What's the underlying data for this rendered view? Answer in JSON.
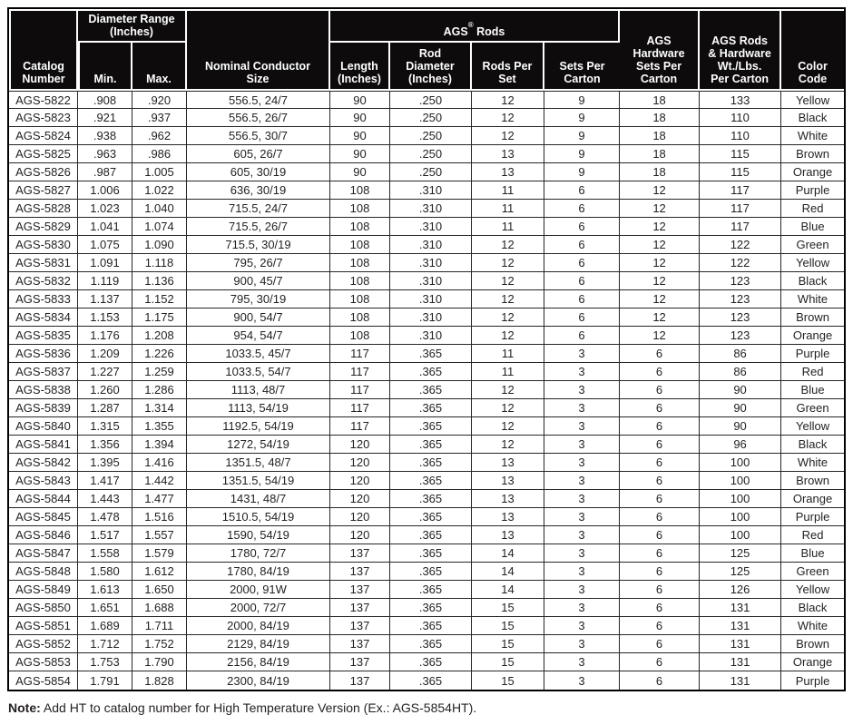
{
  "colors": {
    "header_bg": "#0d0b0c",
    "body_text": "#231f20",
    "grid_line": "#262626",
    "frame": "#000000"
  },
  "note": {
    "label": "Note:",
    "text": " Add HT to catalog number for High Temperature Version (Ex.: AGS-5854HT)."
  },
  "table": {
    "headers": {
      "catalog_number": "Catalog\nNumber",
      "diameter_range_group": "Diameter Range\n(Inches)",
      "min": "Min.",
      "max": "Max.",
      "nominal_conductor_size": "Nominal Conductor\nSize",
      "ags_rods_group": {
        "prefix": "AGS",
        "reg": "®",
        "suffix": " Rods"
      },
      "length": "Length\n(Inches)",
      "rod_diameter": "Rod\nDiameter\n(Inches)",
      "rods_per_set": "Rods Per\nSet",
      "sets_per_carton": "Sets Per\nCarton",
      "hardware_sets_per_carton": "AGS\nHardware\nSets Per\nCarton",
      "rods_hardware_wt_per_carton": "AGS Rods\n& Hardware\nWt./Lbs.\nPer Carton",
      "color_code": "Color\nCode"
    },
    "rows": [
      [
        "AGS-5822",
        ".908",
        ".920",
        "556.5, 24/7",
        "90",
        ".250",
        "12",
        "9",
        "18",
        "133",
        "Yellow"
      ],
      [
        "AGS-5823",
        ".921",
        ".937",
        "556.5, 26/7",
        "90",
        ".250",
        "12",
        "9",
        "18",
        "110",
        "Black"
      ],
      [
        "AGS-5824",
        ".938",
        ".962",
        "556.5, 30/7",
        "90",
        ".250",
        "12",
        "9",
        "18",
        "110",
        "White"
      ],
      [
        "AGS-5825",
        ".963",
        ".986",
        "605, 26/7",
        "90",
        ".250",
        "13",
        "9",
        "18",
        "115",
        "Brown"
      ],
      [
        "AGS-5826",
        ".987",
        "1.005",
        "605, 30/19",
        "90",
        ".250",
        "13",
        "9",
        "18",
        "115",
        "Orange"
      ],
      [
        "AGS-5827",
        "1.006",
        "1.022",
        "636, 30/19",
        "108",
        ".310",
        "11",
        "6",
        "12",
        "117",
        "Purple"
      ],
      [
        "AGS-5828",
        "1.023",
        "1.040",
        "715.5, 24/7",
        "108",
        ".310",
        "11",
        "6",
        "12",
        "117",
        "Red"
      ],
      [
        "AGS-5829",
        "1.041",
        "1.074",
        "715.5, 26/7",
        "108",
        ".310",
        "11",
        "6",
        "12",
        "117",
        "Blue"
      ],
      [
        "AGS-5830",
        "1.075",
        "1.090",
        "715.5, 30/19",
        "108",
        ".310",
        "12",
        "6",
        "12",
        "122",
        "Green"
      ],
      [
        "AGS-5831",
        "1.091",
        "1.118",
        "795, 26/7",
        "108",
        ".310",
        "12",
        "6",
        "12",
        "122",
        "Yellow"
      ],
      [
        "AGS-5832",
        "1.119",
        "1.136",
        "900, 45/7",
        "108",
        ".310",
        "12",
        "6",
        "12",
        "123",
        "Black"
      ],
      [
        "AGS-5833",
        "1.137",
        "1.152",
        "795, 30/19",
        "108",
        ".310",
        "12",
        "6",
        "12",
        "123",
        "White"
      ],
      [
        "AGS-5834",
        "1.153",
        "1.175",
        "900, 54/7",
        "108",
        ".310",
        "12",
        "6",
        "12",
        "123",
        "Brown"
      ],
      [
        "AGS-5835",
        "1.176",
        "1.208",
        "954, 54/7",
        "108",
        ".310",
        "12",
        "6",
        "12",
        "123",
        "Orange"
      ],
      [
        "AGS-5836",
        "1.209",
        "1.226",
        "1033.5, 45/7",
        "117",
        ".365",
        "11",
        "3",
        "6",
        "86",
        "Purple"
      ],
      [
        "AGS-5837",
        "1.227",
        "1.259",
        "1033.5, 54/7",
        "117",
        ".365",
        "11",
        "3",
        "6",
        "86",
        "Red"
      ],
      [
        "AGS-5838",
        "1.260",
        "1.286",
        "1113, 48/7",
        "117",
        ".365",
        "12",
        "3",
        "6",
        "90",
        "Blue"
      ],
      [
        "AGS-5839",
        "1.287",
        "1.314",
        "1113, 54/19",
        "117",
        ".365",
        "12",
        "3",
        "6",
        "90",
        "Green"
      ],
      [
        "AGS-5840",
        "1.315",
        "1.355",
        "1192.5, 54/19",
        "117",
        ".365",
        "12",
        "3",
        "6",
        "90",
        "Yellow"
      ],
      [
        "AGS-5841",
        "1.356",
        "1.394",
        "1272, 54/19",
        "120",
        ".365",
        "12",
        "3",
        "6",
        "96",
        "Black"
      ],
      [
        "AGS-5842",
        "1.395",
        "1.416",
        "1351.5, 48/7",
        "120",
        ".365",
        "13",
        "3",
        "6",
        "100",
        "White"
      ],
      [
        "AGS-5843",
        "1.417",
        "1.442",
        "1351.5, 54/19",
        "120",
        ".365",
        "13",
        "3",
        "6",
        "100",
        "Brown"
      ],
      [
        "AGS-5844",
        "1.443",
        "1.477",
        "1431, 48/7",
        "120",
        ".365",
        "13",
        "3",
        "6",
        "100",
        "Orange"
      ],
      [
        "AGS-5845",
        "1.478",
        "1.516",
        "1510.5, 54/19",
        "120",
        ".365",
        "13",
        "3",
        "6",
        "100",
        "Purple"
      ],
      [
        "AGS-5846",
        "1.517",
        "1.557",
        "1590, 54/19",
        "120",
        ".365",
        "13",
        "3",
        "6",
        "100",
        "Red"
      ],
      [
        "AGS-5847",
        "1.558",
        "1.579",
        "1780, 72/7",
        "137",
        ".365",
        "14",
        "3",
        "6",
        "125",
        "Blue"
      ],
      [
        "AGS-5848",
        "1.580",
        "1.612",
        "1780, 84/19",
        "137",
        ".365",
        "14",
        "3",
        "6",
        "125",
        "Green"
      ],
      [
        "AGS-5849",
        "1.613",
        "1.650",
        "2000, 91W",
        "137",
        ".365",
        "14",
        "3",
        "6",
        "126",
        "Yellow"
      ],
      [
        "AGS-5850",
        "1.651",
        "1.688",
        "2000, 72/7",
        "137",
        ".365",
        "15",
        "3",
        "6",
        "131",
        "Black"
      ],
      [
        "AGS-5851",
        "1.689",
        "1.711",
        "2000, 84/19",
        "137",
        ".365",
        "15",
        "3",
        "6",
        "131",
        "White"
      ],
      [
        "AGS-5852",
        "1.712",
        "1.752",
        "2129, 84/19",
        "137",
        ".365",
        "15",
        "3",
        "6",
        "131",
        "Brown"
      ],
      [
        "AGS-5853",
        "1.753",
        "1.790",
        "2156, 84/19",
        "137",
        ".365",
        "15",
        "3",
        "6",
        "131",
        "Orange"
      ],
      [
        "AGS-5854",
        "1.791",
        "1.828",
        "2300, 84/19",
        "137",
        ".365",
        "15",
        "3",
        "6",
        "131",
        "Purple"
      ]
    ]
  }
}
